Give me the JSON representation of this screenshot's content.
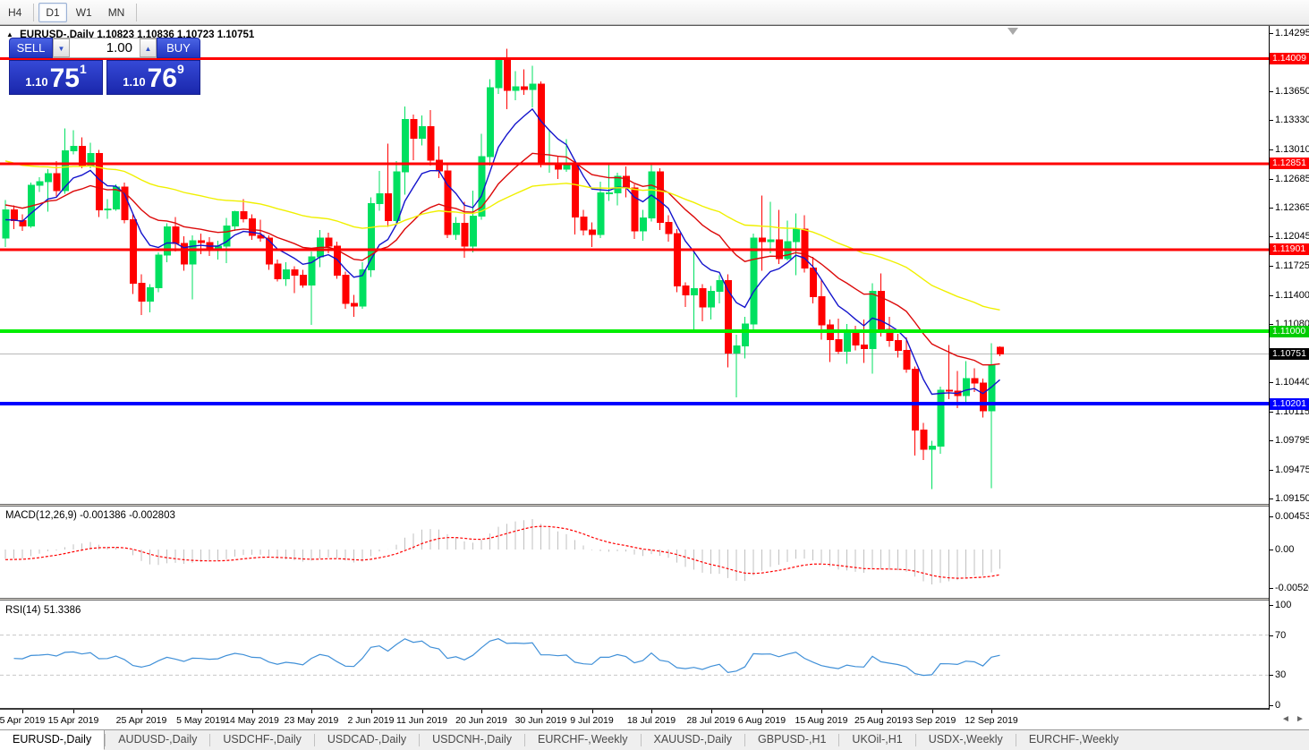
{
  "toolbar": {
    "buttons": [
      {
        "label": "H4",
        "active": false
      },
      {
        "label": "D1",
        "active": true
      },
      {
        "label": "W1",
        "active": false
      },
      {
        "label": "MN",
        "active": false
      }
    ]
  },
  "icons": {
    "collapse": "▲",
    "volume_down": "▼",
    "volume_up": "▲",
    "scroll_left": "◄",
    "scroll_right": "►"
  },
  "chart": {
    "title_symbol": "EURUSD-,Daily",
    "title_ohlc": "1.10823 1.10836 1.10723 1.10751",
    "macd_label": "MACD(12,26,9) -0.001386 -0.002803",
    "rsi_label": "RSI(14) 51.3386"
  },
  "trade_panel": {
    "sell_label": "SELL",
    "buy_label": "BUY",
    "volume": "1.00",
    "sell_price_prefix": "1.10",
    "sell_price_main": "75",
    "sell_price_sup": "1",
    "buy_price_prefix": "1.10",
    "buy_price_main": "76",
    "buy_price_sup": "9"
  },
  "price_axis": {
    "ticks": [
      "1.14295",
      "1.13650",
      "1.13330",
      "1.13010",
      "1.12685",
      "1.12365",
      "1.12045",
      "1.11725",
      "1.11400",
      "1.11080",
      "1.10440",
      "1.10115",
      "1.09795",
      "1.09475",
      "1.09150"
    ],
    "badges": [
      {
        "label": "1.14009",
        "value": 1.14009,
        "bg": "#FF0000"
      },
      {
        "label": "1.12851",
        "value": 1.12851,
        "bg": "#FF0000"
      },
      {
        "label": "1.11901",
        "value": 1.11901,
        "bg": "#FF0000"
      },
      {
        "label": "1.11000",
        "value": 1.11,
        "bg": "#00CC00"
      },
      {
        "label": "1.10751",
        "value": 1.10751,
        "bg": "#000000"
      },
      {
        "label": "1.10201",
        "value": 1.10201,
        "bg": "#0000FF"
      }
    ],
    "macd_ticks": [
      {
        "label": "0.004536",
        "value": 0.004536
      },
      {
        "label": "0.00",
        "value": 0
      },
      {
        "label": "-0.005205",
        "value": -0.005205
      }
    ],
    "rsi_ticks": [
      {
        "label": "100",
        "value": 100
      },
      {
        "label": "70",
        "value": 70
      },
      {
        "label": "30",
        "value": 30
      },
      {
        "label": "0",
        "value": 0
      }
    ]
  },
  "chart_data": {
    "type": "candlestick",
    "symbol": "EURUSD-",
    "timeframe": "Daily",
    "price_range": [
      1.09095,
      1.1437
    ],
    "levels": [
      {
        "value": 1.14009,
        "color": "#FF0000",
        "width": 3
      },
      {
        "value": 1.12851,
        "color": "#FF0000",
        "width": 3
      },
      {
        "value": 1.11901,
        "color": "#FF0000",
        "width": 3
      },
      {
        "value": 1.11,
        "color": "#00EE00",
        "width": 4
      },
      {
        "value": 1.10201,
        "color": "#0000FF",
        "width": 4
      }
    ],
    "current_price": 1.10751,
    "bull_color": "#00E060",
    "bear_color": "#FF0000",
    "moving_averages": [
      {
        "name": "ema-fast",
        "period": 8,
        "color": "#1414CC",
        "seed": 1.122
      },
      {
        "name": "ema-mid",
        "period": 21,
        "color": "#DC0A0A",
        "seed": 1.124
      },
      {
        "name": "ema-slow",
        "period": 55,
        "color": "#F0F000",
        "seed": 1.129
      }
    ],
    "macd": {
      "fast": 12,
      "slow": 26,
      "signal": 9,
      "seed_fast": 1.123,
      "seed_slow": 1.1244,
      "hist_color": "#C0C0C0",
      "signal_color": "#FF0000",
      "main": -0.001386,
      "signal_value": -0.002803
    },
    "rsi": {
      "period": 14,
      "color": "#4090D8",
      "levels": [
        70,
        30
      ],
      "last": 51.3386
    },
    "date_ticks": [
      {
        "label": "5 Apr 2019",
        "index": 2
      },
      {
        "label": "15 Apr 2019",
        "index": 8
      },
      {
        "label": "25 Apr 2019",
        "index": 16
      },
      {
        "label": "5 May 2019",
        "index": 23
      },
      {
        "label": "14 May 2019",
        "index": 29
      },
      {
        "label": "23 May 2019",
        "index": 36
      },
      {
        "label": "2 Jun 2019",
        "index": 43
      },
      {
        "label": "11 Jun 2019",
        "index": 49
      },
      {
        "label": "20 Jun 2019",
        "index": 56
      },
      {
        "label": "30 Jun 2019",
        "index": 63
      },
      {
        "label": "9 Jul 2019",
        "index": 69
      },
      {
        "label": "18 Jul 2019",
        "index": 76
      },
      {
        "label": "28 Jul 2019",
        "index": 83
      },
      {
        "label": "6 Aug 2019",
        "index": 89
      },
      {
        "label": "15 Aug 2019",
        "index": 96
      },
      {
        "label": "25 Aug 2019",
        "index": 103
      },
      {
        "label": "3 Sep 2019",
        "index": 109
      },
      {
        "label": "12 Sep 2019",
        "index": 116
      }
    ],
    "dates": [
      "2019.04.03",
      "2019.04.04",
      "2019.04.05",
      "2019.04.08",
      "2019.04.09",
      "2019.04.10",
      "2019.04.11",
      "2019.04.12",
      "2019.04.15",
      "2019.04.16",
      "2019.04.17",
      "2019.04.18",
      "2019.04.19",
      "2019.04.22",
      "2019.04.23",
      "2019.04.24",
      "2019.04.25",
      "2019.04.26",
      "2019.04.29",
      "2019.04.30",
      "2019.05.01",
      "2019.05.02",
      "2019.05.03",
      "2019.05.06",
      "2019.05.07",
      "2019.05.08",
      "2019.05.09",
      "2019.05.10",
      "2019.05.13",
      "2019.05.14",
      "2019.05.15",
      "2019.05.16",
      "2019.05.17",
      "2019.05.20",
      "2019.05.21",
      "2019.05.22",
      "2019.05.23",
      "2019.05.24",
      "2019.05.27",
      "2019.05.28",
      "2019.05.29",
      "2019.05.30",
      "2019.05.31",
      "2019.06.03",
      "2019.06.04",
      "2019.06.05",
      "2019.06.06",
      "2019.06.07",
      "2019.06.10",
      "2019.06.11",
      "2019.06.12",
      "2019.06.13",
      "2019.06.14",
      "2019.06.17",
      "2019.06.18",
      "2019.06.19",
      "2019.06.20",
      "2019.06.21",
      "2019.06.24",
      "2019.06.25",
      "2019.06.26",
      "2019.06.27",
      "2019.06.28",
      "2019.07.01",
      "2019.07.02",
      "2019.07.03",
      "2019.07.04",
      "2019.07.05",
      "2019.07.08",
      "2019.07.09",
      "2019.07.10",
      "2019.07.11",
      "2019.07.12",
      "2019.07.15",
      "2019.07.16",
      "2019.07.17",
      "2019.07.18",
      "2019.07.19",
      "2019.07.22",
      "2019.07.23",
      "2019.07.24",
      "2019.07.25",
      "2019.07.26",
      "2019.07.29",
      "2019.07.30",
      "2019.07.31",
      "2019.08.01",
      "2019.08.02",
      "2019.08.05",
      "2019.08.06",
      "2019.08.07",
      "2019.08.08",
      "2019.08.09",
      "2019.08.12",
      "2019.08.13",
      "2019.08.14",
      "2019.08.15",
      "2019.08.16",
      "2019.08.19",
      "2019.08.20",
      "2019.08.21",
      "2019.08.22",
      "2019.08.23",
      "2019.08.26",
      "2019.08.27",
      "2019.08.28",
      "2019.08.29",
      "2019.08.30",
      "2019.09.02",
      "2019.09.03",
      "2019.09.04",
      "2019.09.05",
      "2019.09.06",
      "2019.09.09",
      "2019.09.10",
      "2019.09.11",
      "2019.09.12",
      "2019.09.13"
    ],
    "ohlc": [
      [
        1.1203,
        1.1245,
        1.1193,
        1.1234
      ],
      [
        1.1234,
        1.1239,
        1.1213,
        1.1222
      ],
      [
        1.1222,
        1.1229,
        1.1211,
        1.1216
      ],
      [
        1.1216,
        1.1264,
        1.1214,
        1.1261
      ],
      [
        1.1261,
        1.127,
        1.1254,
        1.1265
      ],
      [
        1.1265,
        1.1279,
        1.1232,
        1.1274
      ],
      [
        1.1274,
        1.1288,
        1.1249,
        1.1255
      ],
      [
        1.1255,
        1.1324,
        1.1252,
        1.1299
      ],
      [
        1.1299,
        1.1322,
        1.1295,
        1.1304
      ],
      [
        1.1304,
        1.1314,
        1.128,
        1.1283
      ],
      [
        1.1283,
        1.1308,
        1.128,
        1.1296
      ],
      [
        1.1296,
        1.13,
        1.1226,
        1.1234
      ],
      [
        1.1234,
        1.1246,
        1.1224,
        1.1235
      ],
      [
        1.1235,
        1.1262,
        1.1233,
        1.1259
      ],
      [
        1.1259,
        1.1264,
        1.1219,
        1.1223
      ],
      [
        1.1223,
        1.1229,
        1.1141,
        1.1153
      ],
      [
        1.1153,
        1.1163,
        1.1118,
        1.1133
      ],
      [
        1.1133,
        1.1152,
        1.1121,
        1.1148
      ],
      [
        1.1148,
        1.1187,
        1.1143,
        1.1184
      ],
      [
        1.1184,
        1.1219,
        1.1176,
        1.1215
      ],
      [
        1.1215,
        1.1226,
        1.1188,
        1.1197
      ],
      [
        1.1197,
        1.1205,
        1.1167,
        1.1174
      ],
      [
        1.1174,
        1.1206,
        1.1135,
        1.12
      ],
      [
        1.12,
        1.1208,
        1.1185,
        1.1198
      ],
      [
        1.1198,
        1.1204,
        1.1183,
        1.1191
      ],
      [
        1.1191,
        1.12,
        1.1179,
        1.1194
      ],
      [
        1.1194,
        1.1225,
        1.1175,
        1.1216
      ],
      [
        1.1216,
        1.1233,
        1.1211,
        1.1232
      ],
      [
        1.1232,
        1.1246,
        1.122,
        1.1224
      ],
      [
        1.1224,
        1.1229,
        1.1201,
        1.1206
      ],
      [
        1.1206,
        1.1223,
        1.1199,
        1.1203
      ],
      [
        1.1203,
        1.1206,
        1.1168,
        1.1174
      ],
      [
        1.1174,
        1.1179,
        1.1155,
        1.1158
      ],
      [
        1.1158,
        1.1176,
        1.115,
        1.1168
      ],
      [
        1.1168,
        1.1172,
        1.1142,
        1.1162
      ],
      [
        1.1162,
        1.1168,
        1.1148,
        1.1151
      ],
      [
        1.1151,
        1.1188,
        1.1107,
        1.1182
      ],
      [
        1.1182,
        1.1212,
        1.1171,
        1.1203
      ],
      [
        1.1203,
        1.1209,
        1.1186,
        1.1194
      ],
      [
        1.1194,
        1.1199,
        1.1158,
        1.1162
      ],
      [
        1.1162,
        1.1166,
        1.1125,
        1.1131
      ],
      [
        1.1131,
        1.114,
        1.1116,
        1.1128
      ],
      [
        1.1128,
        1.1176,
        1.1125,
        1.1168
      ],
      [
        1.1168,
        1.1248,
        1.116,
        1.1241
      ],
      [
        1.1241,
        1.1277,
        1.1233,
        1.1252
      ],
      [
        1.1252,
        1.1307,
        1.1215,
        1.1222
      ],
      [
        1.1222,
        1.1288,
        1.1217,
        1.1276
      ],
      [
        1.1276,
        1.1348,
        1.1251,
        1.1334
      ],
      [
        1.1334,
        1.1339,
        1.1289,
        1.1313
      ],
      [
        1.1313,
        1.1338,
        1.1305,
        1.1326
      ],
      [
        1.1326,
        1.1344,
        1.1283,
        1.1289
      ],
      [
        1.1289,
        1.1304,
        1.1269,
        1.1277
      ],
      [
        1.1277,
        1.1286,
        1.1203,
        1.1207
      ],
      [
        1.1207,
        1.1226,
        1.1201,
        1.1219
      ],
      [
        1.1219,
        1.1243,
        1.1181,
        1.1194
      ],
      [
        1.1194,
        1.1255,
        1.1187,
        1.1227
      ],
      [
        1.1227,
        1.1318,
        1.1223,
        1.1293
      ],
      [
        1.1293,
        1.1378,
        1.1283,
        1.1369
      ],
      [
        1.1369,
        1.14,
        1.1362,
        1.1399
      ],
      [
        1.1399,
        1.1412,
        1.1345,
        1.1366
      ],
      [
        1.1366,
        1.1387,
        1.1355,
        1.137
      ],
      [
        1.137,
        1.1389,
        1.1361,
        1.1367
      ],
      [
        1.1367,
        1.1393,
        1.1347,
        1.1373
      ],
      [
        1.1373,
        1.1376,
        1.1281,
        1.1286
      ],
      [
        1.1286,
        1.1322,
        1.1275,
        1.1286
      ],
      [
        1.1286,
        1.1294,
        1.1268,
        1.1279
      ],
      [
        1.1279,
        1.1312,
        1.1276,
        1.1284
      ],
      [
        1.1284,
        1.1287,
        1.1207,
        1.1226
      ],
      [
        1.1226,
        1.1234,
        1.1206,
        1.1212
      ],
      [
        1.1212,
        1.122,
        1.1193,
        1.1207
      ],
      [
        1.1207,
        1.1265,
        1.1203,
        1.1253
      ],
      [
        1.1253,
        1.1286,
        1.1244,
        1.1253
      ],
      [
        1.1253,
        1.1275,
        1.1239,
        1.1271
      ],
      [
        1.1271,
        1.1282,
        1.1248,
        1.1258
      ],
      [
        1.1258,
        1.1262,
        1.1202,
        1.1211
      ],
      [
        1.1211,
        1.1234,
        1.12,
        1.1225
      ],
      [
        1.1225,
        1.1285,
        1.1221,
        1.1276
      ],
      [
        1.1276,
        1.128,
        1.1212,
        1.122
      ],
      [
        1.122,
        1.1228,
        1.1199,
        1.1208
      ],
      [
        1.1208,
        1.1213,
        1.1143,
        1.115
      ],
      [
        1.115,
        1.1154,
        1.1127,
        1.114
      ],
      [
        1.114,
        1.1187,
        1.1101,
        1.1147
      ],
      [
        1.1147,
        1.1152,
        1.1111,
        1.1127
      ],
      [
        1.1127,
        1.115,
        1.1113,
        1.1144
      ],
      [
        1.1144,
        1.1162,
        1.1131,
        1.1156
      ],
      [
        1.1156,
        1.1163,
        1.106,
        1.1076
      ],
      [
        1.1076,
        1.1096,
        1.1027,
        1.1084
      ],
      [
        1.1084,
        1.1116,
        1.107,
        1.1108
      ],
      [
        1.1108,
        1.1208,
        1.1102,
        1.1203
      ],
      [
        1.1203,
        1.125,
        1.1167,
        1.1199
      ],
      [
        1.1199,
        1.1243,
        1.1186,
        1.1201
      ],
      [
        1.1201,
        1.1234,
        1.1174,
        1.118
      ],
      [
        1.118,
        1.1222,
        1.1178,
        1.1199
      ],
      [
        1.1199,
        1.123,
        1.1162,
        1.1213
      ],
      [
        1.1213,
        1.1228,
        1.1165,
        1.117
      ],
      [
        1.117,
        1.1182,
        1.1131,
        1.1138
      ],
      [
        1.1138,
        1.1157,
        1.1091,
        1.1107
      ],
      [
        1.1107,
        1.1113,
        1.1066,
        1.1091
      ],
      [
        1.1091,
        1.1114,
        1.1075,
        1.1078
      ],
      [
        1.1078,
        1.1108,
        1.1064,
        1.1098
      ],
      [
        1.1098,
        1.1106,
        1.1079,
        1.1085
      ],
      [
        1.1085,
        1.1113,
        1.1065,
        1.1081
      ],
      [
        1.1081,
        1.1153,
        1.1053,
        1.1144
      ],
      [
        1.1144,
        1.1164,
        1.1094,
        1.1102
      ],
      [
        1.1102,
        1.1116,
        1.1083,
        1.109
      ],
      [
        1.109,
        1.1097,
        1.1071,
        1.1079
      ],
      [
        1.1079,
        1.1093,
        1.1054,
        1.1058
      ],
      [
        1.1058,
        1.1061,
        1.0963,
        1.0991
      ],
      [
        1.0991,
        1.0999,
        1.0958,
        1.097
      ],
      [
        1.097,
        1.0979,
        1.0926,
        1.0973
      ],
      [
        1.0973,
        1.1039,
        1.0965,
        1.1035
      ],
      [
        1.1035,
        1.1085,
        1.1025,
        1.1034
      ],
      [
        1.1034,
        1.1056,
        1.1015,
        1.1029
      ],
      [
        1.1029,
        1.1067,
        1.1021,
        1.1048
      ],
      [
        1.1048,
        1.1059,
        1.1033,
        1.1043
      ],
      [
        1.1043,
        1.1048,
        1.1005,
        1.1012
      ],
      [
        1.1012,
        1.1087,
        1.0927,
        1.1063
      ],
      [
        1.10823,
        1.10836,
        1.10723,
        1.10751
      ]
    ]
  },
  "tabs": [
    {
      "label": "EURUSD-,Daily",
      "active": true
    },
    {
      "label": "AUDUSD-,Daily",
      "active": false
    },
    {
      "label": "USDCHF-,Daily",
      "active": false
    },
    {
      "label": "USDCAD-,Daily",
      "active": false
    },
    {
      "label": "USDCNH-,Daily",
      "active": false
    },
    {
      "label": "EURCHF-,Weekly",
      "active": false
    },
    {
      "label": "XAUUSD-,Daily",
      "active": false
    },
    {
      "label": "GBPUSD-,H1",
      "active": false
    },
    {
      "label": "UKOil-,H1",
      "active": false
    },
    {
      "label": "USDX-,Weekly",
      "active": false
    },
    {
      "label": "EURCHF-,Weekly",
      "active": false
    }
  ]
}
